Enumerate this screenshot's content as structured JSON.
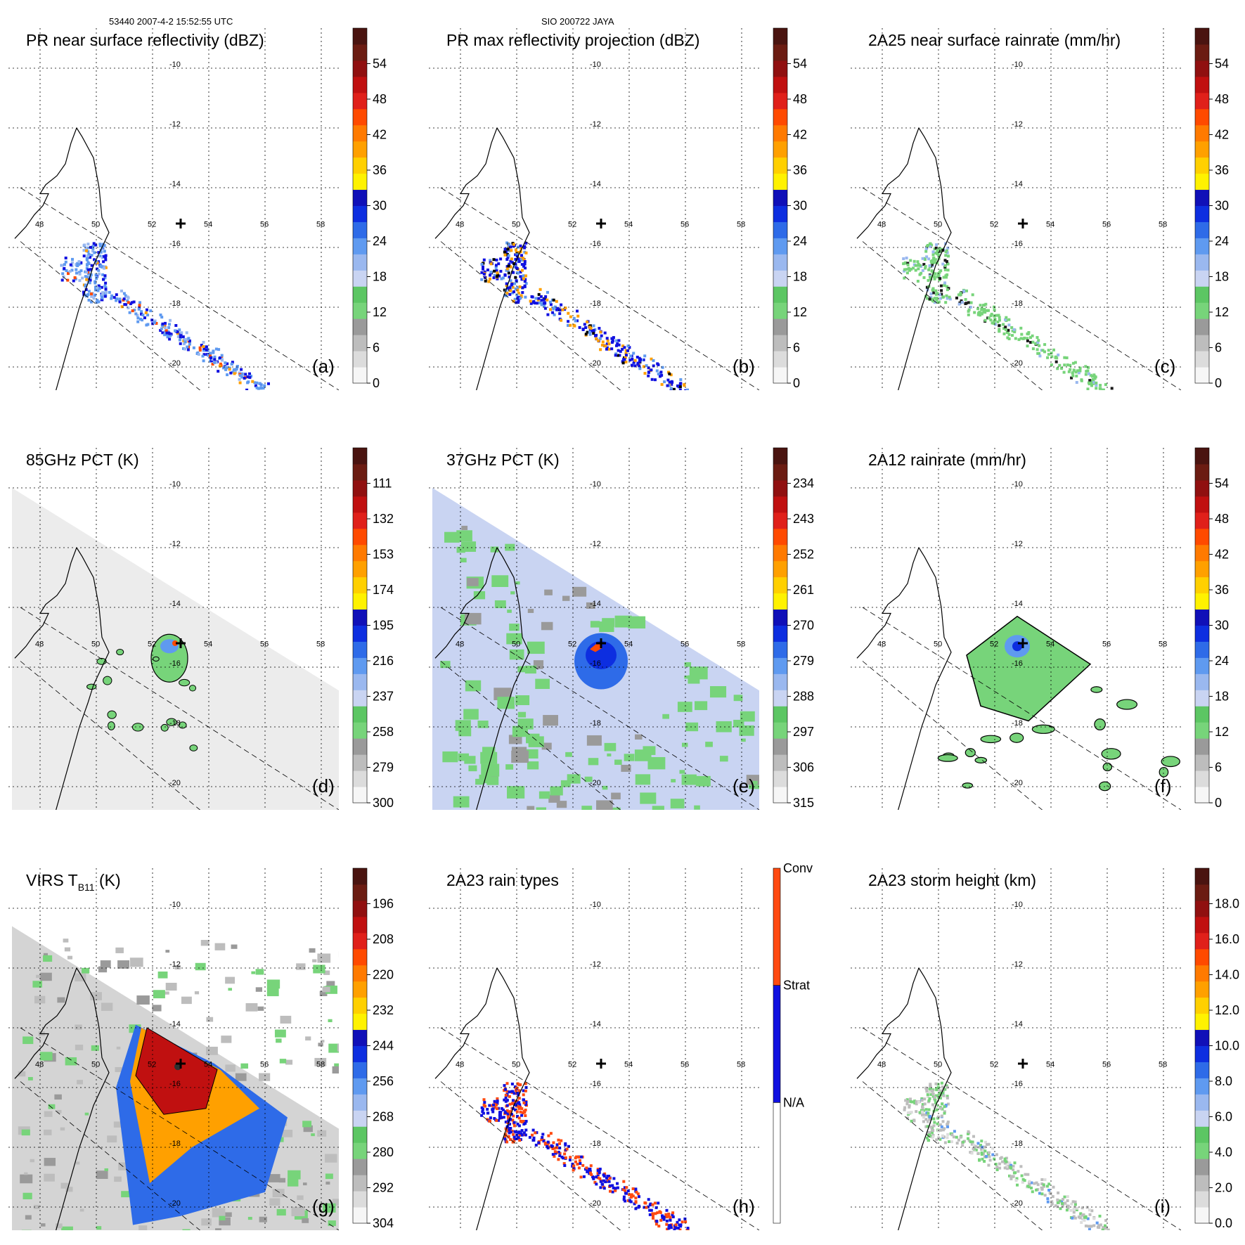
{
  "header": {
    "left": "53440 2007-4-2 15:52:55 UTC",
    "center": "SIO 200722 JAYA"
  },
  "chart_data": [
    {
      "type": "heatmap",
      "panel": "a",
      "title": "PR near surface reflectivity (dBZ)",
      "colorbar": {
        "ticks": [
          "0",
          "6",
          "12",
          "18",
          "24",
          "30",
          "36",
          "42",
          "48",
          "54"
        ]
      },
      "lon_ticks": [
        "48",
        "50",
        "52",
        "54",
        "56",
        "58"
      ],
      "lat_ticks": [
        "-10",
        "-12",
        "-14",
        "-16",
        "-18",
        "-20"
      ],
      "field": "swath",
      "storm_center": {
        "lon": 53,
        "lat": -15.2
      }
    },
    {
      "type": "heatmap",
      "panel": "b",
      "title": "PR max reflectivity projection (dBZ)",
      "colorbar": {
        "ticks": [
          "0",
          "6",
          "12",
          "18",
          "24",
          "30",
          "36",
          "42",
          "48",
          "54"
        ]
      },
      "lon_ticks": [
        "48",
        "50",
        "52",
        "54",
        "56",
        "58"
      ],
      "lat_ticks": [
        "-10",
        "-12",
        "-14",
        "-16",
        "-18",
        "-20"
      ],
      "field": "swath-contour",
      "storm_center": {
        "lon": 53,
        "lat": -15.2
      }
    },
    {
      "type": "heatmap",
      "panel": "c",
      "title": "2A25 near surface rainrate (mm/hr)",
      "colorbar": {
        "ticks": [
          "0",
          "6",
          "12",
          "18",
          "24",
          "30",
          "36",
          "42",
          "48",
          "54"
        ]
      },
      "lon_ticks": [
        "48",
        "50",
        "52",
        "54",
        "56",
        "58"
      ],
      "lat_ticks": [
        "-10",
        "-12",
        "-14",
        "-16",
        "-18",
        "-20"
      ],
      "field": "swath-green",
      "storm_center": {
        "lon": 53,
        "lat": -15.2
      }
    },
    {
      "type": "heatmap",
      "panel": "d",
      "title": "85GHz PCT (K)",
      "colorbar": {
        "ticks": [
          "300",
          "279",
          "258",
          "237",
          "216",
          "195",
          "174",
          "153",
          "132",
          "111"
        ]
      },
      "lon_ticks": [
        "48",
        "50",
        "52",
        "54",
        "56",
        "58"
      ],
      "lat_ticks": [
        "-10",
        "-12",
        "-14",
        "-16",
        "-18",
        "-20"
      ],
      "field": "tmi-85",
      "storm_center": {
        "lon": 53,
        "lat": -15.2
      }
    },
    {
      "type": "heatmap",
      "panel": "e",
      "title": "37GHz PCT (K)",
      "colorbar": {
        "ticks": [
          "315",
          "306",
          "297",
          "288",
          "279",
          "270",
          "261",
          "252",
          "243",
          "234"
        ]
      },
      "lon_ticks": [
        "48",
        "50",
        "52",
        "54",
        "56",
        "58"
      ],
      "lat_ticks": [
        "-10",
        "-12",
        "-14",
        "-16",
        "-18",
        "-20"
      ],
      "field": "tmi-37",
      "storm_center": {
        "lon": 53,
        "lat": -15.2
      }
    },
    {
      "type": "heatmap",
      "panel": "f",
      "title": "2A12 rainrate (mm/hr)",
      "colorbar": {
        "ticks": [
          "0",
          "6",
          "12",
          "18",
          "24",
          "30",
          "36",
          "42",
          "48",
          "54"
        ]
      },
      "lon_ticks": [
        "48",
        "50",
        "52",
        "54",
        "56",
        "58"
      ],
      "lat_ticks": [
        "-10",
        "-12",
        "-14",
        "-16",
        "-18",
        "-20"
      ],
      "field": "tmi-rain",
      "storm_center": {
        "lon": 53,
        "lat": -15.2
      }
    },
    {
      "type": "heatmap",
      "panel": "g",
      "title": "VIRS T",
      "title_sub": "B11",
      "title_suffix": " (K)",
      "colorbar": {
        "ticks": [
          "304",
          "292",
          "280",
          "268",
          "256",
          "244",
          "232",
          "220",
          "208",
          "196"
        ]
      },
      "lon_ticks": [
        "48",
        "50",
        "52",
        "54",
        "56",
        "58"
      ],
      "lat_ticks": [
        "-10",
        "-12",
        "-14",
        "-16",
        "-18",
        "-20"
      ],
      "field": "virs",
      "storm_center": {
        "lon": 53,
        "lat": -15.2
      }
    },
    {
      "type": "heatmap",
      "panel": "h",
      "title": "2A23 rain types",
      "colorbar": {
        "categories": [
          "N/A",
          "Strat",
          "Conv"
        ]
      },
      "lon_ticks": [
        "48",
        "50",
        "52",
        "54",
        "56",
        "58"
      ],
      "lat_ticks": [
        "-10",
        "-12",
        "-14",
        "-16",
        "-18",
        "-20"
      ],
      "field": "types",
      "storm_center": {
        "lon": 53,
        "lat": -15.2
      }
    },
    {
      "type": "heatmap",
      "panel": "i",
      "title": "2A23 storm height (km)",
      "colorbar": {
        "ticks": [
          "0.0",
          "2.0",
          "4.0",
          "6.0",
          "8.0",
          "10.0",
          "12.0",
          "14.0",
          "16.0",
          "18.0"
        ]
      },
      "lon_ticks": [
        "48",
        "50",
        "52",
        "54",
        "56",
        "58"
      ],
      "lat_ticks": [
        "-10",
        "-12",
        "-14",
        "-16",
        "-18",
        "-20"
      ],
      "field": "height",
      "storm_center": {
        "lon": 53,
        "lat": -15.2
      }
    }
  ],
  "colors": {
    "colorbar_scale": [
      "#f6f6f6",
      "#dcdcdc",
      "#bdbdbd",
      "#9a9a9a",
      "#77d47a",
      "#5cc663",
      "#c9d4f2",
      "#9ab8ef",
      "#5f9af0",
      "#2e6be8",
      "#0d2ee0",
      "#1010b8",
      "#fff200",
      "#ffd000",
      "#ffa000",
      "#ff7a00",
      "#ff4a00",
      "#e0201a",
      "#c01010",
      "#901010",
      "#6b1c12",
      "#4a1410"
    ],
    "height_scale": [
      "#f6f6f6",
      "#dcdcdc",
      "#bdbdbd",
      "#9a9a9a",
      "#77d47a",
      "#5cc663",
      "#c9d4f2",
      "#9ab8ef",
      "#5f9af0",
      "#2e6be8",
      "#0d2ee0",
      "#1010b8",
      "#fff200",
      "#ffd000",
      "#ffa000",
      "#ff7a00",
      "#ff4a00",
      "#e0201a",
      "#c01010",
      "#901010",
      "#6b1c12",
      "#4a1410"
    ],
    "types": {
      "N/A": "#ffffff",
      "Strat": "#1010e0",
      "Conv": "#ff4a10"
    },
    "coast": "#000000",
    "grid": "#000000"
  }
}
